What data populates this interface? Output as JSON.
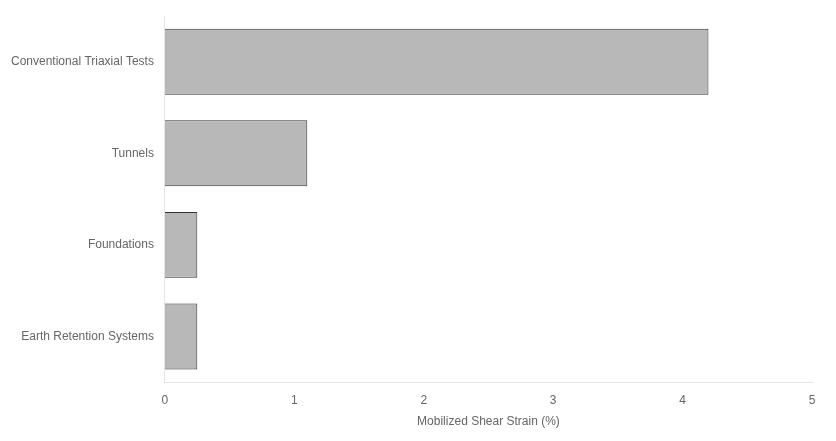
{
  "chart_data": {
    "type": "bar",
    "orientation": "horizontal",
    "categories": [
      "Earth Retention Systems",
      "Foundations",
      "Tunnels",
      "Conventional Triaxial Tests"
    ],
    "values": [
      0.25,
      0.25,
      1.1,
      4.2
    ],
    "color": "#b8b8b8",
    "xlabel": "Mobilized Shear Strain (%)",
    "xlim": [
      0,
      5
    ],
    "xticks": [
      0,
      1,
      2,
      3,
      4,
      5
    ],
    "grid": false
  }
}
